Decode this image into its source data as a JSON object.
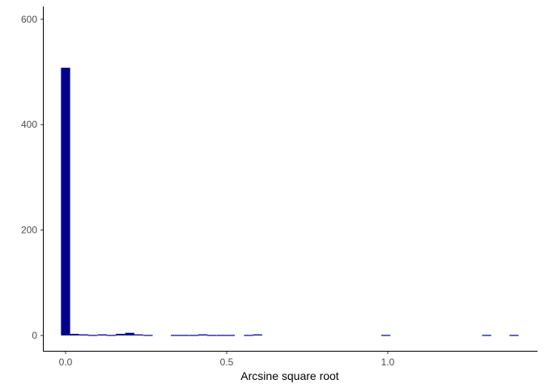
{
  "chart_data": {
    "type": "bar",
    "title": "",
    "xlabel": "Arcsine square root",
    "ylabel": "",
    "bar_color": "#00008B",
    "bin_width": 0.0284,
    "xlim": [
      -0.0142,
      1.3932
    ],
    "ylim": [
      0,
      620
    ],
    "x_ticks": [
      0.0,
      0.5,
      1.0
    ],
    "x_tick_labels": [
      "0.0",
      "0.5",
      "1.0"
    ],
    "y_ticks": [
      0,
      200,
      400,
      600
    ],
    "y_tick_labels": [
      "0",
      "200",
      "400",
      "600"
    ],
    "grid": false,
    "legend": "none",
    "bins": [
      {
        "x": 0.0,
        "count": 508
      },
      {
        "x": 0.028,
        "count": 3
      },
      {
        "x": 0.057,
        "count": 2
      },
      {
        "x": 0.085,
        "count": 1
      },
      {
        "x": 0.114,
        "count": 2
      },
      {
        "x": 0.142,
        "count": 1
      },
      {
        "x": 0.17,
        "count": 3
      },
      {
        "x": 0.199,
        "count": 5
      },
      {
        "x": 0.227,
        "count": 2
      },
      {
        "x": 0.256,
        "count": 1
      },
      {
        "x": 0.341,
        "count": 1
      },
      {
        "x": 0.369,
        "count": 1
      },
      {
        "x": 0.398,
        "count": 1
      },
      {
        "x": 0.426,
        "count": 2
      },
      {
        "x": 0.454,
        "count": 1
      },
      {
        "x": 0.483,
        "count": 1
      },
      {
        "x": 0.511,
        "count": 1
      },
      {
        "x": 0.568,
        "count": 1
      },
      {
        "x": 0.596,
        "count": 2
      },
      {
        "x": 0.994,
        "count": 1
      },
      {
        "x": 1.307,
        "count": 1
      },
      {
        "x": 1.392,
        "count": 1
      }
    ]
  }
}
